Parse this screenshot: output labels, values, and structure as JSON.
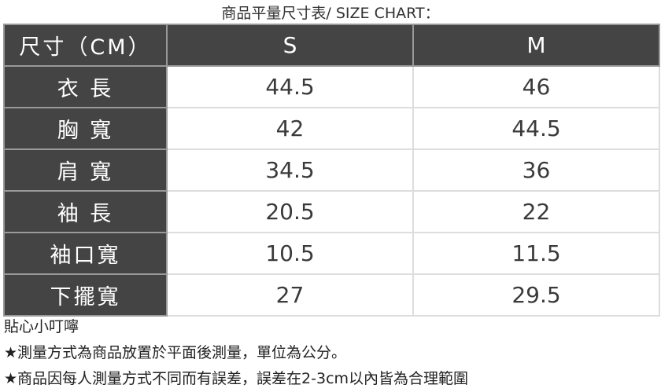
{
  "title": "商品平量尺寸表/ SIZE CHART：",
  "table": {
    "header": [
      "尺寸（CM）",
      "S",
      "M"
    ],
    "rows": [
      [
        "衣 長",
        "44.5",
        "46"
      ],
      [
        "胸 寬",
        "42",
        "44.5"
      ],
      [
        "肩 寬",
        "34.5",
        "36"
      ],
      [
        "袖 長",
        "20.5",
        "22"
      ],
      [
        "袖口寬",
        "10.5",
        "11.5"
      ],
      [
        "下擺寬",
        "27",
        "29.5"
      ]
    ]
  },
  "notes": [
    "貼心小叮嚀",
    "★測量方式為商品放置於平面後測量，單位為公分。",
    "★商品因每人測量方式不同而有誤差，誤差在2-3cm以內皆為合理範圍"
  ],
  "colors": {
    "label_bg": "#444444",
    "border": "#dddddd"
  }
}
